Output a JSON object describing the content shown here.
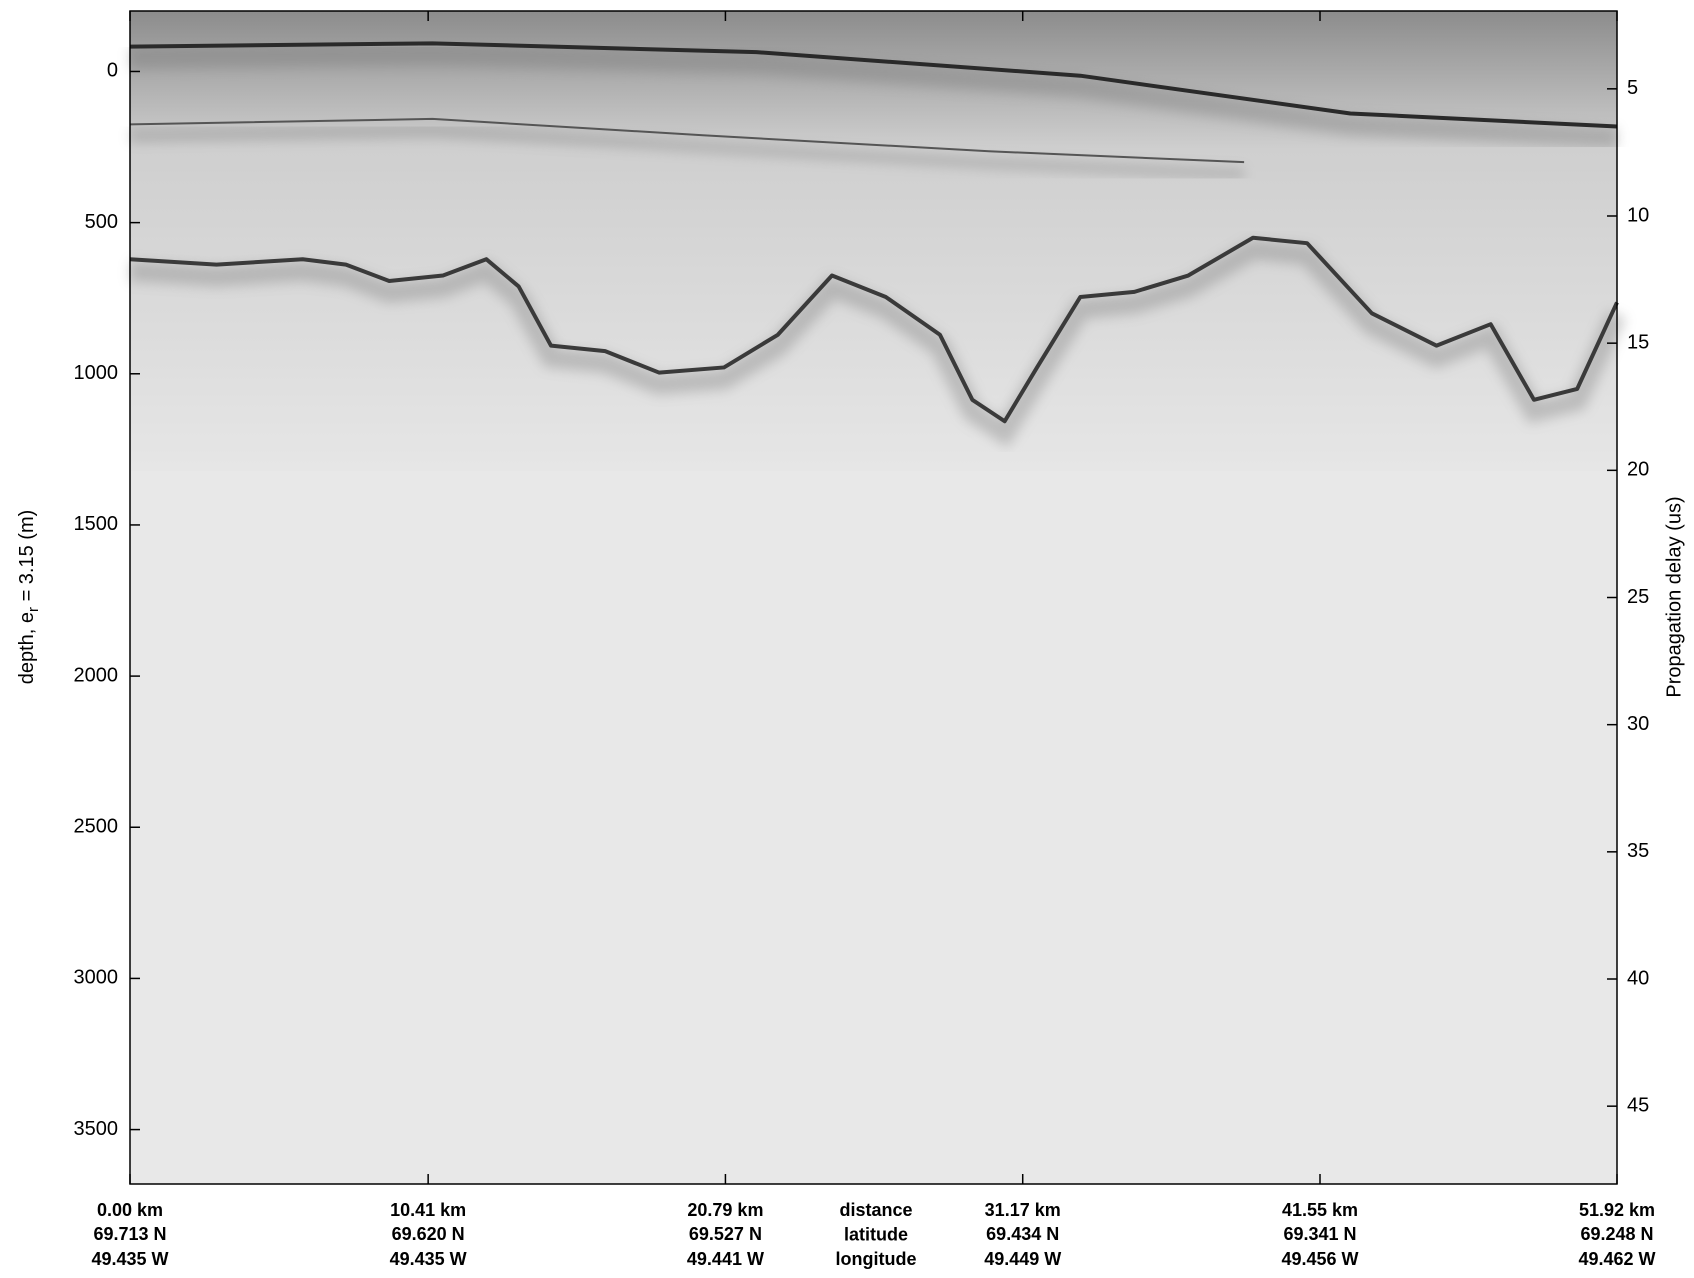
{
  "chart_data": {
    "type": "radargram",
    "ylabel": [
      "depth, e",
      "r",
      " = 3.15 (m)"
    ],
    "y2label": "Propagation delay (us)",
    "xlim": [
      0,
      51.92
    ],
    "xticks": [
      {
        "value": 0,
        "label": "0.00 km"
      },
      {
        "value": 10.41,
        "label": "10.41 km"
      },
      {
        "value": 20.79,
        "label": "20.79 km"
      },
      {
        "value": 31.17,
        "label": "31.17 km"
      },
      {
        "value": 41.55,
        "label": "41.55 km"
      },
      {
        "value": 51.92,
        "label": "51.92 km"
      }
    ],
    "latitude_labels": [
      "69.713 N",
      "69.620 N",
      "69.527 N",
      "69.434 N",
      "69.341 N",
      "69.248 N"
    ],
    "longitude_labels": [
      "49.435 W",
      "49.435 W",
      "49.441 W",
      "49.449 W",
      "49.456 W",
      "49.462 W"
    ],
    "row_titles": [
      "distance",
      "latitude",
      "longitude"
    ],
    "ylim": [
      -200,
      3680
    ],
    "yticks": [
      0,
      500,
      1000,
      1500,
      2000,
      2500,
      3000,
      3500
    ],
    "y2lim": [
      1.94,
      48.06
    ],
    "y2ticks": [
      5,
      10,
      15,
      20,
      25,
      30,
      35,
      40,
      45
    ],
    "series": [
      {
        "color": "#2a2a2a",
        "width": 4,
        "x": [
          0,
          10.56,
          21.87,
          33.18,
          42.61,
          51.92
        ],
        "values": [
          -82,
          -93,
          -64,
          14,
          139,
          182
        ]
      },
      {
        "color": "#555555",
        "width": 2,
        "x": [
          0,
          10.56,
          20.0,
          29.99,
          38.9
        ],
        "values": [
          175,
          157,
          211,
          264,
          300
        ]
      },
      {
        "color": "#3a3a3a",
        "width": 4,
        "x": [
          0,
          3.02,
          6.03,
          7.54,
          9.05,
          10.93,
          12.44,
          13.57,
          14.7,
          16.59,
          18.47,
          20.74,
          22.62,
          24.51,
          26.39,
          28.28,
          29.41,
          30.54,
          31.67,
          33.18,
          35.07,
          36.95,
          39.21,
          41.1,
          43.36,
          45.62,
          47.51,
          49.02,
          50.53,
          51.92
        ],
        "values": [
          621,
          639,
          621,
          639,
          693,
          675,
          621,
          711,
          907,
          925,
          996,
          979,
          871,
          675,
          746,
          871,
          1086,
          1157,
          979,
          746,
          729,
          675,
          550,
          568,
          800,
          907,
          836,
          1086,
          1050,
          764
        ]
      }
    ]
  }
}
